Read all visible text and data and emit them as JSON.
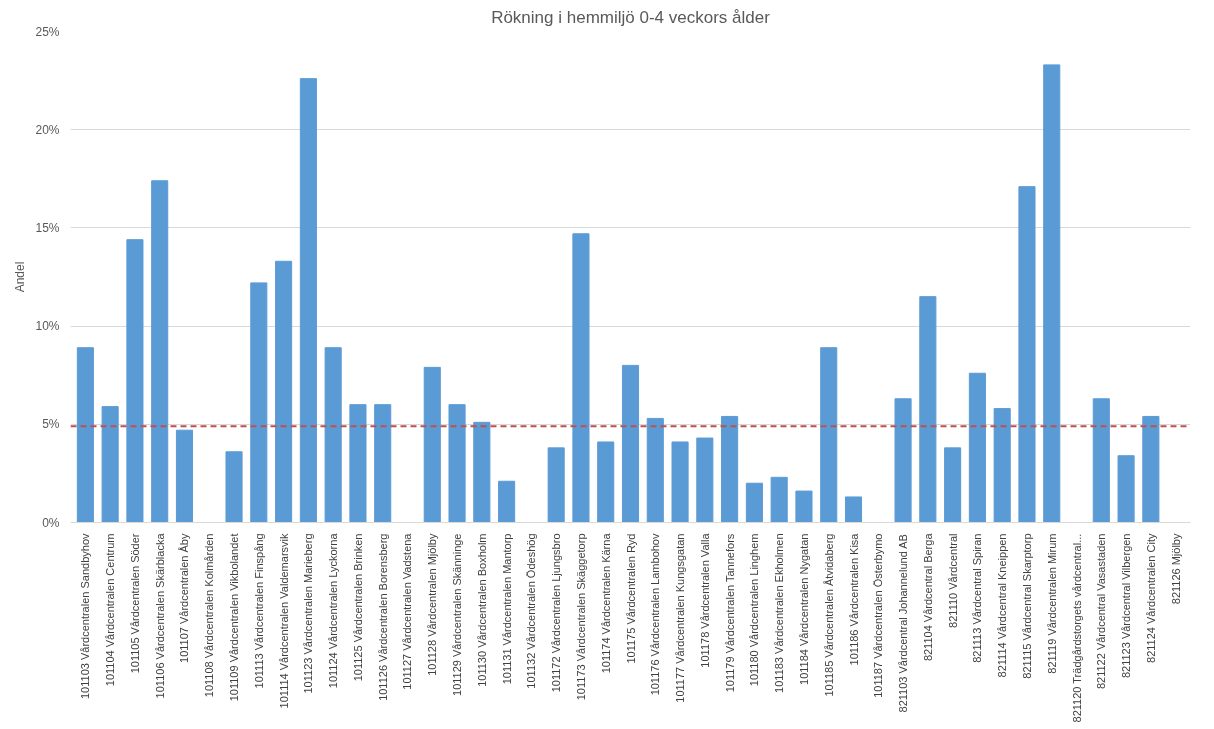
{
  "chart_data": {
    "type": "bar",
    "title": "Rökning i hemmiljö 0-4 veckors ålder",
    "ylabel": "Andel",
    "categories": [
      "101103 Vårdcentralen Sandbyhov",
      "101104 Vårdcentralen Centrum",
      "101105 Vårdcentralen Söder",
      "101106 Vårdcentralen Skärblacka",
      "101107 Vårdcentralen Åby",
      "101108 Vårdcentralen Kolmården",
      "101109 Vårdcentralen Vikbolandet",
      "101113 Vårdcentralen Finspång",
      "101114 Vårdcentralen Valdemarsvik",
      "101123 Vårdcentralen Marieberg",
      "101124 Vårdcentralen Lyckorna",
      "101125 Vårdcentralen Brinken",
      "101126 Vårdcentralen Borensberg",
      "101127 Vårdcentralen Vadstena",
      "101128 Vårdcentralen Mjölby",
      "101129 Vårdcentralen Skänninge",
      "101130 Vårdcentralen Boxholm",
      "101131 Vårdcentralen Mantorp",
      "101132 Vårdcentralen Ödeshög",
      "101172 Vårdcentralen Ljungsbro",
      "101173 Vårdcentralen Skäggetorp",
      "101174 Vårdcentralen Kärna",
      "101175 Vårdcentralen Ryd",
      "101176 Vårdcentralen Lambohov",
      "101177 Vårdcentralen Kungsgatan",
      "101178 Vårdcentralen Valla",
      "101179 Vårdcentralen Tannefors",
      "101180 Vårdcentralen Linghem",
      "101183 Vårdcentralen Ekholmen",
      "101184 Vårdcentralen Nygatan",
      "101185 Vårdcentralen Åtvidaberg",
      "101186 Vårdcentralen Kisa",
      "101187 Vårdcentralen Österbymo",
      "821103 Vårdcentral Johannelund AB",
      "821104 Vårdcentral Berga",
      "821110 Vårdcentral",
      "821113 Vårdcentral Spiran",
      "821114 Vårdcentral Kneippen",
      "821115 Vårdcentral Skarptorp",
      "821119 Vårdcentralen Mirum",
      "821120 Trädgårdstorgets vårdcentral...",
      "821122 Vårdcentral Vasastaden",
      "821123 Vårdcentral Vilbergen",
      "821124 Vårdcentralen City",
      "821126 Mjölby"
    ],
    "values": [
      8.9,
      5.9,
      14.4,
      17.4,
      4.7,
      0,
      3.6,
      12.2,
      13.3,
      22.6,
      8.9,
      6.0,
      6.0,
      0,
      7.9,
      6.0,
      5.1,
      2.1,
      0,
      3.8,
      14.7,
      4.1,
      8.0,
      5.3,
      4.1,
      4.3,
      5.4,
      2.0,
      2.3,
      1.6,
      8.9,
      1.3,
      0,
      6.3,
      11.5,
      3.8,
      7.6,
      5.8,
      17.1,
      23.3,
      0,
      6.3,
      3.4,
      5.4,
      0
    ],
    "color": "#5b9bd5",
    "ylim": [
      0,
      25
    ],
    "yticks": [
      {
        "value": 0,
        "label": "0%"
      },
      {
        "value": 5,
        "label": "5%"
      },
      {
        "value": 10,
        "label": "10%"
      },
      {
        "value": 15,
        "label": "15%"
      },
      {
        "value": 20,
        "label": "20%"
      },
      {
        "value": 25,
        "label": "25%"
      }
    ],
    "grid": "y",
    "ref_lines": [
      {
        "axis": "y",
        "value": 4.9,
        "color": "#c0504d",
        "line_style": "dashed"
      }
    ]
  }
}
